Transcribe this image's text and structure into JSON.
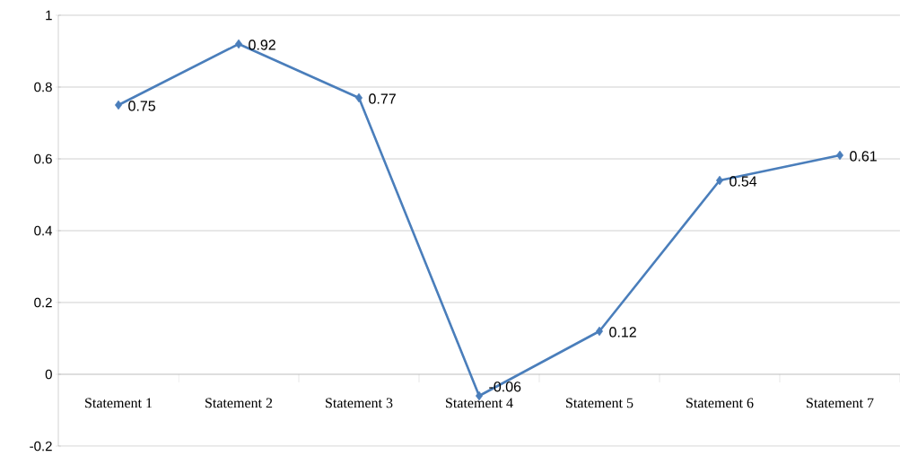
{
  "chart_data": {
    "type": "line",
    "categories": [
      "Statement 1",
      "Statement 2",
      "Statement 3",
      "Statement 4",
      "Statement 5",
      "Statement 6",
      "Statement 7"
    ],
    "values": [
      0.75,
      0.92,
      0.77,
      -0.06,
      0.12,
      0.54,
      0.61
    ],
    "color": "#4a7ebb",
    "ylim": [
      -0.2,
      1
    ],
    "yticks": [
      -0.2,
      0,
      0.2,
      0.4,
      0.6,
      0.8,
      1
    ],
    "grid": "y",
    "marker": "diamond",
    "data_labels": true
  }
}
